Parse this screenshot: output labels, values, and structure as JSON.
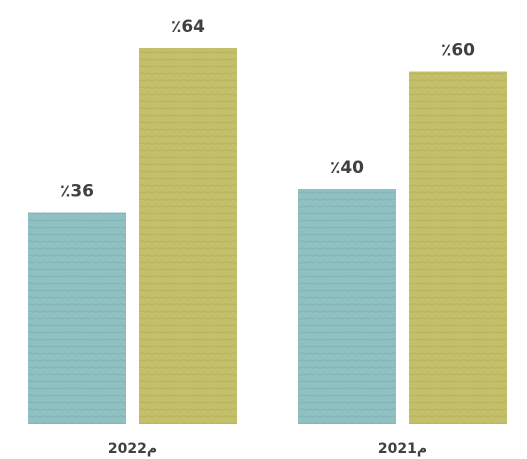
{
  "chart_data": {
    "type": "bar",
    "categories": [
      "2022م",
      "2021م"
    ],
    "series": [
      {
        "values": [
          36,
          40
        ],
        "labels": [
          "٪36",
          "٪40"
        ]
      },
      {
        "values": [
          64,
          60
        ],
        "labels": [
          "٪64",
          "٪60"
        ]
      }
    ],
    "colors": [
      "#8fc1c3",
      "#c4c06a"
    ],
    "ylim": [
      0,
      64
    ],
    "grid": false,
    "legend": "none"
  }
}
